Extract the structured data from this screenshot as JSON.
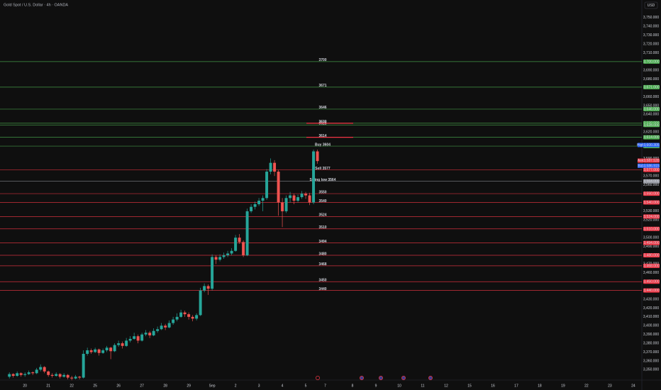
{
  "chart_data": {
    "type": "candlestick",
    "title": "Gold Spot / U.S. Dollar · 4h · OANDA",
    "currency": "USD",
    "up_color": "#26a69a",
    "down_color": "#ef5350",
    "ylim": [
      3339,
      3770
    ],
    "xlim": [
      -2.4,
      162.2
    ],
    "grid": false,
    "yticks": [
      {
        "value": 3350,
        "label": "3,350.000"
      },
      {
        "value": 3360,
        "label": "3,360.000"
      },
      {
        "value": 3370,
        "label": "3,370.000"
      },
      {
        "value": 3380,
        "label": "3,380.000"
      },
      {
        "value": 3390,
        "label": "3,390.000"
      },
      {
        "value": 3400,
        "label": "3,400.000"
      },
      {
        "value": 3410,
        "label": "3,410.000"
      },
      {
        "value": 3420,
        "label": "3,420.000"
      },
      {
        "value": 3430,
        "label": "3,430.000"
      },
      {
        "value": 3460,
        "label": "3,460.000"
      },
      {
        "value": 3470,
        "label": "3,470.000"
      },
      {
        "value": 3490,
        "label": "3,490.000"
      },
      {
        "value": 3500,
        "label": "3,500.000"
      },
      {
        "value": 3520,
        "label": "3,520.000"
      },
      {
        "value": 3530,
        "label": "3,530.000"
      },
      {
        "value": 3560,
        "label": "3,560.000"
      },
      {
        "value": 3570,
        "label": "3,570.000"
      },
      {
        "value": 3590,
        "label": "3,590.000"
      },
      {
        "value": 3620,
        "label": "3,620.000"
      },
      {
        "value": 3640,
        "label": "3,640.000"
      },
      {
        "value": 3650,
        "label": "3,650.000"
      },
      {
        "value": 3660,
        "label": "3,660.000"
      },
      {
        "value": 3680,
        "label": "3,680.000"
      },
      {
        "value": 3690,
        "label": "3,690.000"
      },
      {
        "value": 3710,
        "label": "3,710.000"
      },
      {
        "value": 3720,
        "label": "3,720.000"
      },
      {
        "value": 3730,
        "label": "3,730.000"
      },
      {
        "value": 3740,
        "label": "3,740.000"
      },
      {
        "value": 3750,
        "label": "3,750.000"
      }
    ],
    "xticks": [
      {
        "value": 4,
        "label": "20"
      },
      {
        "value": 10,
        "label": "21"
      },
      {
        "value": 16,
        "label": "22"
      },
      {
        "value": 22,
        "label": "25"
      },
      {
        "value": 28,
        "label": "26"
      },
      {
        "value": 34,
        "label": "27"
      },
      {
        "value": 40,
        "label": "28"
      },
      {
        "value": 46,
        "label": "29"
      },
      {
        "value": 52,
        "label": "Sep"
      },
      {
        "value": 58,
        "label": "2"
      },
      {
        "value": 64,
        "label": "3"
      },
      {
        "value": 70,
        "label": "4"
      },
      {
        "value": 76,
        "label": "5"
      },
      {
        "value": 81,
        "label": "7"
      },
      {
        "value": 88,
        "label": "8"
      },
      {
        "value": 94,
        "label": "9"
      },
      {
        "value": 100,
        "label": "10"
      },
      {
        "value": 106,
        "label": "11"
      },
      {
        "value": 112,
        "label": "12"
      },
      {
        "value": 118,
        "label": "15"
      },
      {
        "value": 124,
        "label": "16"
      },
      {
        "value": 130,
        "label": "17"
      },
      {
        "value": 136,
        "label": "18"
      },
      {
        "value": 142,
        "label": "19"
      },
      {
        "value": 148,
        "label": "22"
      },
      {
        "value": 154,
        "label": "23"
      },
      {
        "value": 160,
        "label": "24"
      }
    ],
    "ohlc": [
      [
        3342,
        3347,
        3340,
        3345
      ],
      [
        3345,
        3346,
        3341,
        3343
      ],
      [
        3343,
        3348,
        3342,
        3346
      ],
      [
        3346,
        3347,
        3342,
        3344
      ],
      [
        3344,
        3347,
        3342,
        3345
      ],
      [
        3345,
        3349,
        3344,
        3347
      ],
      [
        3347,
        3348,
        3344,
        3346
      ],
      [
        3346,
        3352,
        3345,
        3350
      ],
      [
        3350,
        3356,
        3348,
        3353
      ],
      [
        3353,
        3354,
        3346,
        3348
      ],
      [
        3348,
        3349,
        3342,
        3344
      ],
      [
        3344,
        3346,
        3341,
        3343
      ],
      [
        3343,
        3347,
        3342,
        3345
      ],
      [
        3345,
        3346,
        3340,
        3342
      ],
      [
        3342,
        3346,
        3341,
        3344
      ],
      [
        3344,
        3345,
        3339,
        3341
      ],
      [
        3341,
        3343,
        3338,
        3340
      ],
      [
        3340,
        3344,
        3339,
        3342
      ],
      [
        3342,
        3343,
        3339,
        3341
      ],
      [
        3341,
        3372,
        3340,
        3368
      ],
      [
        3368,
        3375,
        3366,
        3372
      ],
      [
        3372,
        3374,
        3368,
        3370
      ],
      [
        3370,
        3375,
        3369,
        3373
      ],
      [
        3373,
        3374,
        3366,
        3369
      ],
      [
        3369,
        3374,
        3368,
        3372
      ],
      [
        3372,
        3377,
        3370,
        3375
      ],
      [
        3375,
        3376,
        3362,
        3371
      ],
      [
        3371,
        3380,
        3370,
        3378
      ],
      [
        3378,
        3383,
        3376,
        3380
      ],
      [
        3380,
        3382,
        3374,
        3377
      ],
      [
        3377,
        3386,
        3376,
        3383
      ],
      [
        3383,
        3388,
        3381,
        3385
      ],
      [
        3385,
        3392,
        3384,
        3388
      ],
      [
        3388,
        3390,
        3380,
        3383
      ],
      [
        3383,
        3392,
        3382,
        3390
      ],
      [
        3390,
        3395,
        3388,
        3392
      ],
      [
        3392,
        3394,
        3386,
        3389
      ],
      [
        3389,
        3397,
        3388,
        3394
      ],
      [
        3394,
        3399,
        3392,
        3396
      ],
      [
        3396,
        3403,
        3395,
        3400
      ],
      [
        3400,
        3402,
        3395,
        3398
      ],
      [
        3398,
        3406,
        3397,
        3403
      ],
      [
        3403,
        3410,
        3401,
        3407
      ],
      [
        3407,
        3414,
        3405,
        3410
      ],
      [
        3410,
        3418,
        3409,
        3415
      ],
      [
        3415,
        3417,
        3410,
        3413
      ],
      [
        3413,
        3415,
        3407,
        3410
      ],
      [
        3410,
        3412,
        3405,
        3408
      ],
      [
        3408,
        3414,
        3406,
        3412
      ],
      [
        3412,
        3443,
        3411,
        3440
      ],
      [
        3440,
        3448,
        3438,
        3445
      ],
      [
        3445,
        3447,
        3435,
        3442
      ],
      [
        3442,
        3481,
        3440,
        3478
      ],
      [
        3478,
        3480,
        3470,
        3475
      ],
      [
        3475,
        3481,
        3473,
        3478
      ],
      [
        3478,
        3483,
        3476,
        3480
      ],
      [
        3480,
        3485,
        3478,
        3482
      ],
      [
        3482,
        3488,
        3480,
        3485
      ],
      [
        3485,
        3503,
        3484,
        3500
      ],
      [
        3500,
        3504,
        3493,
        3495
      ],
      [
        3495,
        3497,
        3478,
        3480
      ],
      [
        3480,
        3533,
        3479,
        3530
      ],
      [
        3530,
        3538,
        3528,
        3535
      ],
      [
        3535,
        3541,
        3532,
        3538
      ],
      [
        3538,
        3545,
        3536,
        3542
      ],
      [
        3542,
        3548,
        3530,
        3545
      ],
      [
        3545,
        3578,
        3543,
        3575
      ],
      [
        3575,
        3590,
        3572,
        3585
      ],
      [
        3585,
        3588,
        3570,
        3575
      ],
      [
        3575,
        3577,
        3525,
        3540
      ],
      [
        3540,
        3545,
        3512,
        3530
      ],
      [
        3530,
        3548,
        3528,
        3545
      ],
      [
        3545,
        3552,
        3540,
        3548
      ],
      [
        3548,
        3550,
        3538,
        3542
      ],
      [
        3542,
        3549,
        3540,
        3546
      ],
      [
        3546,
        3553,
        3544,
        3550
      ],
      [
        3550,
        3552,
        3544,
        3548
      ],
      [
        3548,
        3551,
        3537,
        3540
      ],
      [
        3540,
        3600,
        3538,
        3598
      ],
      [
        3598,
        3600,
        3584,
        3587
      ]
    ],
    "levels": [
      {
        "label": "3700",
        "value": 3700,
        "tag": "3,700.000",
        "color": "#4caf50"
      },
      {
        "label": "3671",
        "value": 3671,
        "tag": "3,671.000",
        "color": "#4caf50"
      },
      {
        "label": "3646",
        "value": 3646,
        "tag": "3,646.000",
        "color": "#4caf50"
      },
      {
        "label": "3630",
        "value": 3630,
        "tag": "3,630.000",
        "color": "#4caf50"
      },
      {
        "label": "3628",
        "value": 3628,
        "tag": "3,628.000",
        "color": "#4caf50"
      },
      {
        "label": "3614",
        "value": 3614,
        "tag": "3,614.000",
        "color": "#4caf50"
      },
      {
        "label": "Buy 3604",
        "value": 3604,
        "tag": "3,604.000",
        "color": "#4caf50"
      },
      {
        "label": "Sell 3577",
        "value": 3577,
        "tag": "3,577.000",
        "color": "#f23645"
      },
      {
        "label": "Swing low 3564",
        "value": 3564,
        "tag": "3,564.000",
        "color": "#9598a1"
      },
      {
        "label": "3550",
        "value": 3550,
        "tag": "3,550.000",
        "color": "#f23645"
      },
      {
        "label": "3540",
        "value": 3540,
        "tag": "3,540.000",
        "color": "#f23645"
      },
      {
        "label": "3524",
        "value": 3524,
        "tag": "3,524.000",
        "color": "#f23645"
      },
      {
        "label": "3510",
        "value": 3510,
        "tag": "3,510.000",
        "color": "#f23645"
      },
      {
        "label": "3494",
        "value": 3494,
        "tag": "3,494.000",
        "color": "#f23645"
      },
      {
        "label": "3480",
        "value": 3480,
        "tag": "3,480.000",
        "color": "#f23645"
      },
      {
        "label": "3468",
        "value": 3468,
        "tag": "3,468.000",
        "color": "#f23645"
      },
      {
        "label": "3450",
        "value": 3450,
        "tag": "3,450.000",
        "color": "#f23645"
      },
      {
        "label": "3440",
        "value": 3440,
        "tag": "3,440.000",
        "color": "#f23645"
      }
    ],
    "zones": {
      "color": "#f23645",
      "values": [
        3630,
        3614
      ]
    },
    "price_tags": [
      {
        "label": "High",
        "value": 3600,
        "tag": "3,600.305",
        "color": "#2962ff"
      },
      {
        "label": "Ask",
        "value": 3587.5,
        "tag": "3,587.535",
        "color": "#f23645"
      },
      {
        "label": "Bid",
        "value": 3586.9,
        "tag": "3,586.915",
        "color": "#2962ff"
      }
    ]
  }
}
